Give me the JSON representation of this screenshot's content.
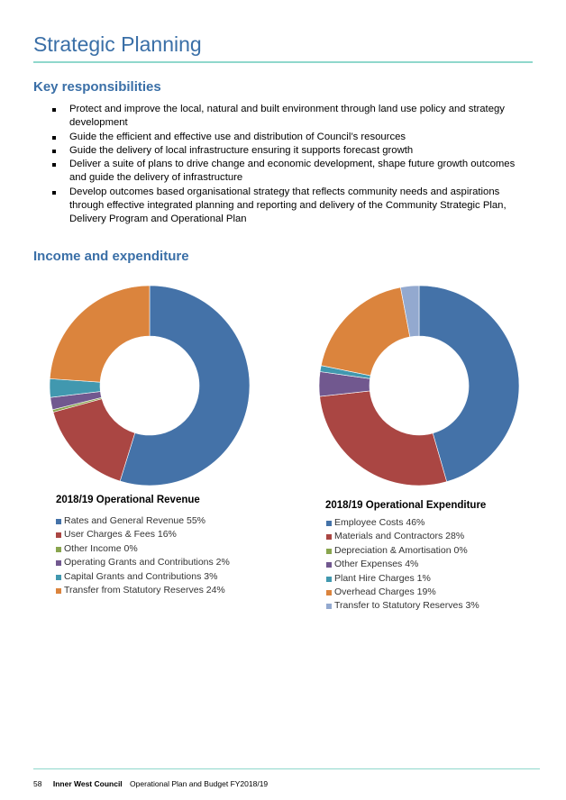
{
  "page": {
    "title": "Strategic Planning",
    "key_heading": "Key responsibilities",
    "responsibilities": [
      "Protect and improve the local, natural and built environment through land use policy and strategy development",
      "Guide the efficient and effective use and distribution of Council’s resources",
      "Guide the delivery of local infrastructure ensuring it supports forecast growth",
      "Deliver a suite of plans to drive change and economic development, shape future growth outcomes and guide the delivery of infrastructure",
      "Develop outcomes based organisational strategy that reflects community needs and aspirations through effective integrated planning and reporting and delivery of the Community Strategic Plan, Delivery Program and Operational Plan"
    ],
    "income_heading": "Income and expenditure"
  },
  "chart_data": [
    {
      "type": "pie",
      "donut": true,
      "title": "2018/19 Operational Revenue",
      "legend_position": "bottom",
      "series": [
        {
          "name": "Rates and General Revenue 55%",
          "value": 55,
          "color": "#4472a8"
        },
        {
          "name": "User Charges & Fees 16%",
          "value": 16,
          "color": "#aa4643"
        },
        {
          "name": "Other Income 0%",
          "value": 0.4,
          "color": "#89a54e"
        },
        {
          "name": "Operating Grants and Contributions 2%",
          "value": 2,
          "color": "#71588f"
        },
        {
          "name": "Capital Grants and Contributions 3%",
          "value": 3,
          "color": "#4198af"
        },
        {
          "name": "Transfer from Statutory Reserves 24%",
          "value": 24,
          "color": "#db843d"
        }
      ]
    },
    {
      "type": "pie",
      "donut": true,
      "title": "2018/19 Operational Expenditure",
      "legend_position": "bottom",
      "series": [
        {
          "name": "Employee Costs 46%",
          "value": 46,
          "color": "#4472a8"
        },
        {
          "name": "Materials and Contractors 28%",
          "value": 28,
          "color": "#aa4643"
        },
        {
          "name": "Depreciation & Amortisation 0%",
          "value": 0,
          "color": "#89a54e"
        },
        {
          "name": "Other Expenses 4%",
          "value": 4,
          "color": "#71588f"
        },
        {
          "name": "Plant Hire Charges 1%",
          "value": 1,
          "color": "#4198af"
        },
        {
          "name": "Overhead Charges 19%",
          "value": 19,
          "color": "#db843d"
        },
        {
          "name": "Transfer to Statutory Reserves 3%",
          "value": 3,
          "color": "#93a9cf"
        }
      ]
    }
  ],
  "footer": {
    "page_number": "58",
    "organisation": "Inner West Council",
    "document": "Operational Plan and Budget FY2018/19"
  }
}
